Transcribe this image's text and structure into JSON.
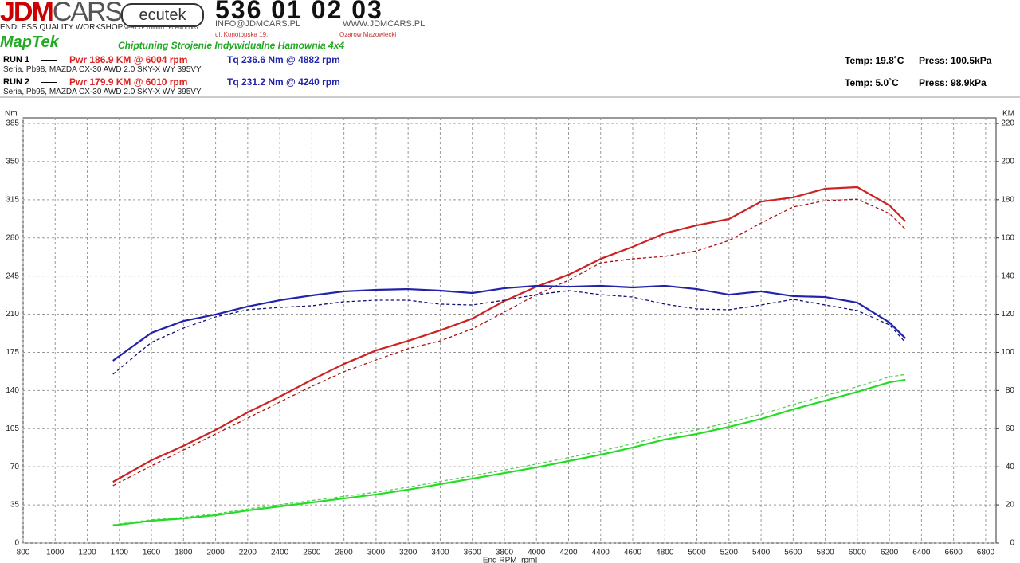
{
  "header": {
    "logo_jdm": "JDM",
    "logo_cars": "CARS",
    "logo_sub": "ENDLESS QUALITY WORKSHOP",
    "ecutek": "ecutek",
    "ecutek_sub": "VEHICLE TUNING TECHNOLOGY",
    "phone": "536 01 02 03",
    "email": "INFO@JDMCARS.PL",
    "www": "WWW.JDMCARS.PL",
    "street": "ul. Konotopska 19,",
    "city": "Ozarow Mazowiecki",
    "maptek": "MapTek",
    "slogan": "Chiptuning Strojenie Indywidualne Hamownia 4x4",
    "runs": [
      {
        "label": "RUN 1",
        "pwr": "Pwr  186.9 KM @ 6004 rpm",
        "tq": "Tq 236.6 Nm @ 4882 rpm",
        "desc": "Seria, Pb98, MAZDA CX-30 AWD 2.0 SKY-X WY 395VY",
        "temp": "Temp: 19.8˚C",
        "press": "Press: 100.5kPa"
      },
      {
        "label": "RUN 2",
        "pwr": "Pwr  179.9 KM @ 6010 rpm",
        "tq": "Tq 231.2 Nm @ 4240 rpm",
        "desc": "Seria, Pb95, MAZDA CX-30 AWD 2.0 SKY-X WY 395VY",
        "temp": "Temp: 5.0˚C",
        "press": "Press: 98.9kPa"
      }
    ]
  },
  "chart_data": {
    "type": "line",
    "xlabel": "Eng RPM [rpm]",
    "ylabel": "Nm",
    "y2label": "KM",
    "x": [
      1360,
      1600,
      1800,
      2000,
      2200,
      2400,
      2600,
      2800,
      3000,
      3200,
      3400,
      3600,
      3800,
      4000,
      4200,
      4400,
      4600,
      4800,
      5000,
      5200,
      5400,
      5600,
      5800,
      6000,
      6200,
      6300
    ],
    "xlim": [
      800,
      6865
    ],
    "xticks": [
      800,
      1000,
      1200,
      1400,
      1600,
      1800,
      2000,
      2200,
      2400,
      2600,
      2800,
      3000,
      3200,
      3400,
      3600,
      3800,
      4000,
      4200,
      4400,
      4600,
      4800,
      5000,
      5200,
      5400,
      5600,
      5800,
      6000,
      6200,
      6400,
      6600,
      6800
    ],
    "ylim": [
      0,
      385
    ],
    "yticks": [
      0,
      35,
      70,
      105,
      140,
      175,
      210,
      245,
      280,
      315,
      350,
      385
    ],
    "y2lim": [
      0,
      220
    ],
    "y2ticks": [
      0,
      20,
      40,
      60,
      80,
      100,
      120,
      140,
      160,
      180,
      200,
      220
    ],
    "grid": true,
    "series": [
      {
        "color": "#cc2222",
        "dashed": false,
        "axis": "y2",
        "values": [
          32.1,
          43.4,
          51,
          59.3,
          68.5,
          76.8,
          85.6,
          93.9,
          101,
          106,
          111.5,
          117.7,
          126.9,
          134.4,
          140.7,
          149,
          155.3,
          162.4,
          166.6,
          169.9,
          179,
          181.2,
          185.8,
          186.6,
          177,
          168.7
        ]
      },
      {
        "color": "#aa1111",
        "dashed": true,
        "axis": "y2",
        "values": [
          30.1,
          40.5,
          48.8,
          57.2,
          65.5,
          73.9,
          82.2,
          89.8,
          96,
          101.9,
          106,
          112.3,
          121.1,
          130.2,
          137.8,
          146.9,
          149,
          150.3,
          153.2,
          158.6,
          167.8,
          176.2,
          179.5,
          180.3,
          172.8,
          164.5
        ]
      },
      {
        "color": "#2222aa",
        "dashed": false,
        "axis": "y",
        "values": [
          167.3,
          192.9,
          203.8,
          209.7,
          217,
          222.8,
          227.2,
          230.9,
          232.3,
          233,
          231.6,
          229.4,
          233.8,
          236,
          235.2,
          236,
          234.5,
          236,
          233,
          227.9,
          230.9,
          226.5,
          225.7,
          220.6,
          202.4,
          187.8
        ]
      },
      {
        "color": "#111177",
        "dashed": true,
        "axis": "y",
        "values": [
          154.9,
          184.1,
          197.3,
          207.5,
          214.1,
          216.2,
          217.7,
          221.4,
          222.8,
          222.8,
          219.2,
          218.4,
          222.8,
          227.9,
          231.6,
          227.9,
          225.7,
          219.2,
          214.8,
          214.1,
          218.4,
          223.6,
          218.4,
          213.3,
          200.2,
          184.1
        ]
      },
      {
        "color": "#22dd22",
        "dashed": false,
        "axis": "y2",
        "values": [
          9.2,
          11.7,
          12.9,
          14.6,
          17.1,
          19.2,
          21.3,
          23.4,
          25.5,
          28,
          30.9,
          33.8,
          36.7,
          39.7,
          43,
          46.3,
          50.1,
          54.3,
          57.2,
          60.9,
          65.1,
          70.1,
          74.7,
          79.3,
          84.3,
          85.6
        ]
      },
      {
        "color": "#55cc55",
        "dashed": true,
        "axis": "y2",
        "values": [
          9.6,
          12.2,
          13.5,
          15.3,
          17.9,
          20.1,
          22.3,
          24.5,
          26.7,
          29.3,
          32.3,
          35.3,
          38.3,
          41.4,
          44.8,
          48.2,
          52.1,
          56.4,
          59.4,
          63.2,
          67.5,
          72.6,
          77.3,
          82,
          87.1,
          88.4
        ]
      }
    ]
  }
}
